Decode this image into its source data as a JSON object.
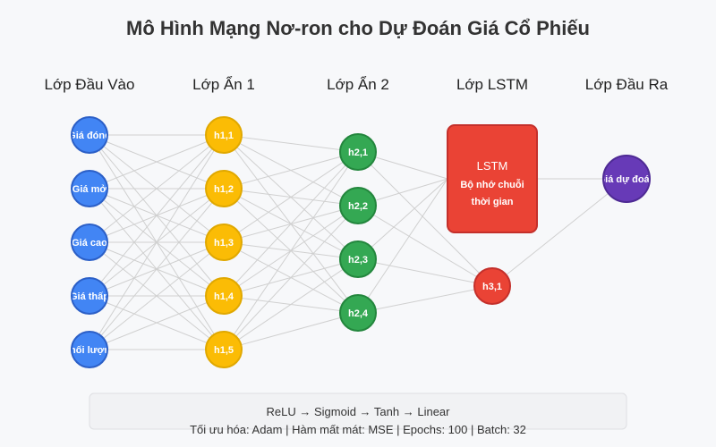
{
  "title": "Mô Hình Mạng Nơ-ron cho Dự Đoán Giá Cổ Phiếu",
  "layers": [
    {
      "key": "input",
      "label": "Lớp Đầu Vào",
      "color": "#4285f4",
      "stroke": "#2b5fc7",
      "nodes": [
        "Giá đóng",
        "Giá mở",
        "Giá cao",
        "Giá thấp",
        "Khối lượng"
      ]
    },
    {
      "key": "hidden1",
      "label": "Lớp Ẩn 1",
      "color": "#fbbc05",
      "stroke": "#e0a800",
      "nodes": [
        "h1,1",
        "h1,2",
        "h1,3",
        "h1,4",
        "h1,5"
      ]
    },
    {
      "key": "hidden2",
      "label": "Lớp Ẩn 2",
      "color": "#34a853",
      "stroke": "#23863d",
      "nodes": [
        "h2,1",
        "h2,2",
        "h2,3",
        "h2,4"
      ]
    },
    {
      "key": "lstm",
      "label": "Lớp LSTM",
      "color": "#ea4335",
      "stroke": "#c4302b",
      "box": {
        "title": "LSTM",
        "line1": "Bộ nhớ chuỗi",
        "line2": "thời gian"
      },
      "nodes": [
        "h3,1"
      ]
    },
    {
      "key": "output",
      "label": "Lớp Đầu Ra",
      "color": "#673ab7",
      "stroke": "#4e2a94",
      "nodes": [
        "Giá dự đoán"
      ]
    }
  ],
  "footer": {
    "activations": "ReLU → Sigmoid → Tanh → Linear",
    "details": "Tối ưu hóa: Adam | Hàm mất mát: MSE | Epochs: 100 | Batch: 32"
  }
}
